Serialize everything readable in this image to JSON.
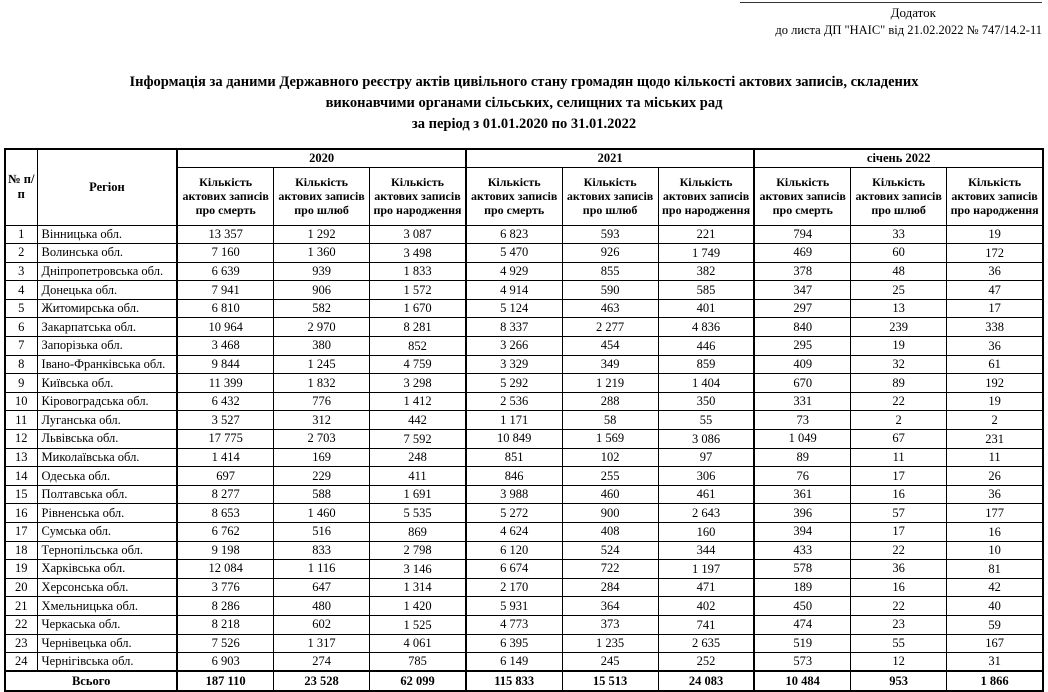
{
  "header": {
    "appendix": "Додаток",
    "reference": "до листа ДП \"НАІС\" від 21.02.2022 № 747/14.2-11"
  },
  "title": {
    "line1": "Інформація за даними Державного реєстру актів цивільного стану громадян щодо кількості актових записів, складених",
    "line2": "виконавчими органами сільських, селищних та міських рад",
    "line3": "за період з 01.01.2020 по 31.01.2022"
  },
  "table": {
    "col_num": "№ п/п",
    "col_region": "Регіон",
    "groups": [
      {
        "label": "2020"
      },
      {
        "label": "2021"
      },
      {
        "label": "січень 2022"
      }
    ],
    "sub_headers": [
      "Кількість актових записів про смерть",
      "Кількість актових записів про шлюб",
      "Кількість актових записів про народження"
    ],
    "rows": [
      {
        "num": "1",
        "region": "Вінницька обл.",
        "values": [
          "13 357",
          "1 292",
          "3 087",
          "6 823",
          "593",
          "221",
          "794",
          "33",
          "19"
        ]
      },
      {
        "num": "2",
        "region": "Волинська обл.",
        "values": [
          "7 160",
          "1 360",
          "3 498",
          "5 470",
          "926",
          "1 749",
          "469",
          "60",
          "172"
        ]
      },
      {
        "num": "3",
        "region": "Дніпропетровська обл.",
        "values": [
          "6 639",
          "939",
          "1 833",
          "4 929",
          "855",
          "382",
          "378",
          "48",
          "36"
        ]
      },
      {
        "num": "4",
        "region": "Донецька обл.",
        "values": [
          "7 941",
          "906",
          "1 572",
          "4 914",
          "590",
          "585",
          "347",
          "25",
          "47"
        ]
      },
      {
        "num": "5",
        "region": "Житомирська обл.",
        "values": [
          "6 810",
          "582",
          "1 670",
          "5 124",
          "463",
          "401",
          "297",
          "13",
          "17"
        ]
      },
      {
        "num": "6",
        "region": "Закарпатська обл.",
        "values": [
          "10 964",
          "2 970",
          "8 281",
          "8 337",
          "2 277",
          "4 836",
          "840",
          "239",
          "338"
        ]
      },
      {
        "num": "7",
        "region": "Запорізька обл.",
        "values": [
          "3 468",
          "380",
          "852",
          "3 266",
          "454",
          "446",
          "295",
          "19",
          "36"
        ]
      },
      {
        "num": "8",
        "region": "Івано-Франківська обл.",
        "values": [
          "9 844",
          "1 245",
          "4 759",
          "3 329",
          "349",
          "859",
          "409",
          "32",
          "61"
        ]
      },
      {
        "num": "9",
        "region": "Київська обл.",
        "values": [
          "11 399",
          "1 832",
          "3 298",
          "5 292",
          "1 219",
          "1 404",
          "670",
          "89",
          "192"
        ]
      },
      {
        "num": "10",
        "region": "Кіровоградська обл.",
        "values": [
          "6 432",
          "776",
          "1 412",
          "2 536",
          "288",
          "350",
          "331",
          "22",
          "19"
        ]
      },
      {
        "num": "11",
        "region": "Луганська обл.",
        "values": [
          "3 527",
          "312",
          "442",
          "1 171",
          "58",
          "55",
          "73",
          "2",
          "2"
        ]
      },
      {
        "num": "12",
        "region": "Львівська обл.",
        "values": [
          "17 775",
          "2 703",
          "7 592",
          "10 849",
          "1 569",
          "3 086",
          "1 049",
          "67",
          "231"
        ]
      },
      {
        "num": "13",
        "region": "Миколаївська обл.",
        "values": [
          "1 414",
          "169",
          "248",
          "851",
          "102",
          "97",
          "89",
          "11",
          "11"
        ]
      },
      {
        "num": "14",
        "region": "Одеська обл.",
        "values": [
          "697",
          "229",
          "411",
          "846",
          "255",
          "306",
          "76",
          "17",
          "26"
        ]
      },
      {
        "num": "15",
        "region": "Полтавська обл.",
        "values": [
          "8 277",
          "588",
          "1 691",
          "3 988",
          "460",
          "461",
          "361",
          "16",
          "36"
        ]
      },
      {
        "num": "16",
        "region": "Рівненська обл.",
        "values": [
          "8 653",
          "1 460",
          "5 535",
          "5 272",
          "900",
          "2 643",
          "396",
          "57",
          "177"
        ]
      },
      {
        "num": "17",
        "region": "Сумська обл.",
        "values": [
          "6 762",
          "516",
          "869",
          "4 624",
          "408",
          "160",
          "394",
          "17",
          "16"
        ]
      },
      {
        "num": "18",
        "region": "Тернопільська обл.",
        "values": [
          "9 198",
          "833",
          "2 798",
          "6 120",
          "524",
          "344",
          "433",
          "22",
          "10"
        ]
      },
      {
        "num": "19",
        "region": "Харківська обл.",
        "values": [
          "12 084",
          "1 116",
          "3 146",
          "6 674",
          "722",
          "1 197",
          "578",
          "36",
          "81"
        ]
      },
      {
        "num": "20",
        "region": "Херсонська обл.",
        "values": [
          "3 776",
          "647",
          "1 314",
          "2 170",
          "284",
          "471",
          "189",
          "16",
          "42"
        ]
      },
      {
        "num": "21",
        "region": "Хмельницька обл.",
        "values": [
          "8 286",
          "480",
          "1 420",
          "5 931",
          "364",
          "402",
          "450",
          "22",
          "40"
        ]
      },
      {
        "num": "22",
        "region": "Черкаська обл.",
        "values": [
          "8 218",
          "602",
          "1 525",
          "4 773",
          "373",
          "741",
          "474",
          "23",
          "59"
        ]
      },
      {
        "num": "23",
        "region": "Чернівецька обл.",
        "values": [
          "7 526",
          "1 317",
          "4 061",
          "6 395",
          "1 235",
          "2 635",
          "519",
          "55",
          "167"
        ]
      },
      {
        "num": "24",
        "region": "Чернігівська обл.",
        "values": [
          "6 903",
          "274",
          "785",
          "6 149",
          "245",
          "252",
          "573",
          "12",
          "31"
        ]
      }
    ],
    "total": {
      "label": "Всього",
      "values": [
        "187 110",
        "23 528",
        "62 099",
        "115 833",
        "15 513",
        "24 083",
        "10 484",
        "953",
        "1 866"
      ]
    }
  }
}
